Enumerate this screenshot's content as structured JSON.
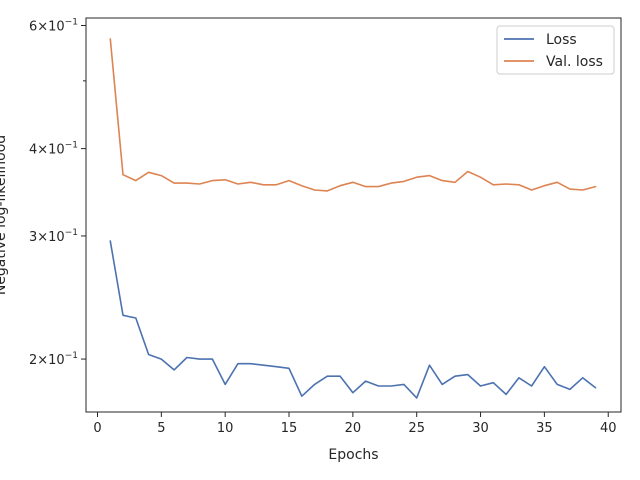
{
  "chart_data": {
    "type": "line",
    "title": "",
    "xlabel": "Epochs",
    "ylabel": "Negative log-likelihood",
    "yscale": "log",
    "xlim": [
      -0.9,
      41
    ],
    "ylim": [
      0.168,
      0.615
    ],
    "xticks": [
      0,
      5,
      10,
      15,
      20,
      25,
      30,
      35,
      40
    ],
    "yticks": [
      {
        "value": 0.6,
        "mantissa": "6",
        "base": "10",
        "exp": "−1"
      },
      {
        "value": 0.4,
        "mantissa": "4",
        "base": "10",
        "exp": "−1"
      },
      {
        "value": 0.3,
        "mantissa": "3",
        "base": "10",
        "exp": "−1"
      },
      {
        "value": 0.2,
        "mantissa": "2",
        "base": "10",
        "exp": "−1"
      }
    ],
    "minor_yticks": [
      0.5
    ],
    "times_symbol": "×",
    "grid": false,
    "legend_position": "top-right",
    "x": [
      1,
      2,
      3,
      4,
      5,
      6,
      7,
      8,
      9,
      10,
      11,
      12,
      13,
      14,
      15,
      16,
      17,
      18,
      19,
      20,
      21,
      22,
      23,
      24,
      25,
      26,
      27,
      28,
      29,
      30,
      31,
      32,
      33,
      34,
      35,
      36,
      37,
      38,
      39
    ],
    "series": [
      {
        "name": "Loss",
        "color": "#4c72b0",
        "values": [
          0.295,
          0.231,
          0.229,
          0.203,
          0.2,
          0.193,
          0.201,
          0.2,
          0.2,
          0.184,
          0.197,
          0.197,
          0.196,
          0.195,
          0.194,
          0.177,
          0.184,
          0.189,
          0.189,
          0.179,
          0.186,
          0.183,
          0.183,
          0.184,
          0.176,
          0.196,
          0.184,
          0.189,
          0.19,
          0.183,
          0.185,
          0.178,
          0.188,
          0.183,
          0.195,
          0.184,
          0.181,
          0.188,
          0.182
        ]
      },
      {
        "name": "Val. loss",
        "color": "#dd8452",
        "values": [
          0.574,
          0.367,
          0.36,
          0.37,
          0.366,
          0.357,
          0.357,
          0.356,
          0.36,
          0.361,
          0.356,
          0.358,
          0.355,
          0.355,
          0.36,
          0.354,
          0.349,
          0.348,
          0.354,
          0.358,
          0.353,
          0.353,
          0.357,
          0.359,
          0.364,
          0.366,
          0.36,
          0.358,
          0.371,
          0.364,
          0.355,
          0.356,
          0.355,
          0.349,
          0.354,
          0.358,
          0.35,
          0.349,
          0.353
        ]
      }
    ]
  }
}
